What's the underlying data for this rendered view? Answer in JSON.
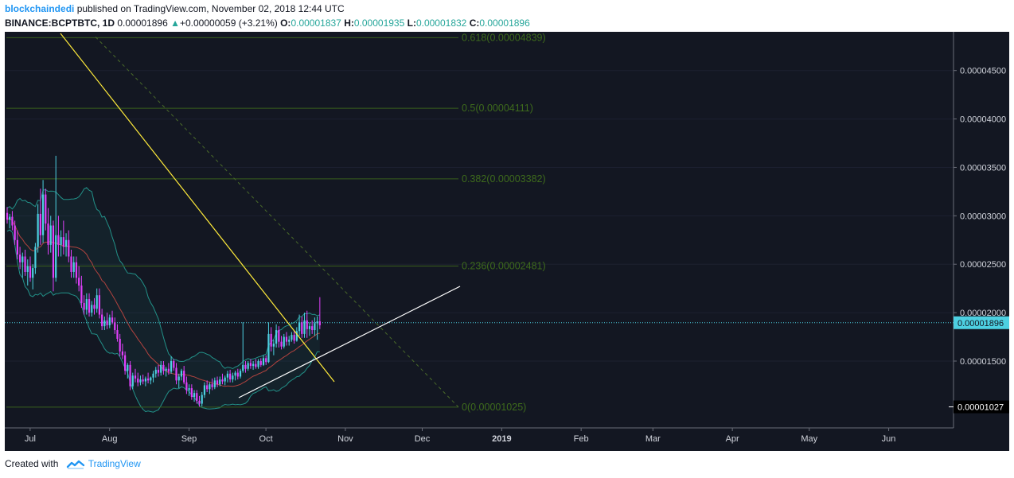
{
  "header": {
    "author": "blockchaindedi",
    "published_text": "published on TradingView.com, November 02, 2018 12:44 UTC",
    "symbol": "BINANCE:BCPTBTC, 1D",
    "last": "0.00001896",
    "change": "+0.00000059 (+3.21%)",
    "o_label": "O:",
    "o_val": "0.00001837",
    "h_label": "H:",
    "h_val": "0.00001935",
    "l_label": "L:",
    "l_val": "0.00001832",
    "c_label": "C:",
    "c_val": "0.00001896"
  },
  "footer": {
    "created_with": "Created with",
    "brand": "TradingView"
  },
  "colors": {
    "background": "#131722",
    "bull": "#4dd0e1",
    "bear": "#e040fb",
    "fib": "#3a5f1c",
    "fib_text": "#3e6b1c",
    "trend_yellow": "#ffeb3b",
    "trend_white": "#ffffff",
    "bollinger": "#26a69a",
    "ma": "#b2433f",
    "last_price": "#4dd0e1"
  },
  "chart_data": {
    "type": "candlestick",
    "interval": "1D",
    "x_tick_labels": [
      "Jul",
      "Aug",
      "Sep",
      "Oct",
      "Nov",
      "Dec",
      "2019",
      "Feb",
      "Mar",
      "Apr",
      "May",
      "Jun"
    ],
    "y_tick_labels": [
      "0.00004500",
      "0.00004000",
      "0.00003500",
      "0.00003000",
      "0.00002500",
      "0.00002000",
      "0.00001500"
    ],
    "y_ticks": [
      4.5e-05,
      4e-05,
      3.5e-05,
      3e-05,
      2.5e-05,
      2e-05,
      1.5e-05
    ],
    "ylim": [
      8.1e-06,
      4.9e-05
    ],
    "last_price": 1.896e-05,
    "last_price_label": "0.00001896",
    "low_marker": 1.027e-05,
    "low_marker_label": "0.00001027",
    "fib_levels": [
      {
        "level": 0.618,
        "value": 4.839e-05,
        "label": "0.618(0.00004839)"
      },
      {
        "level": 0.5,
        "value": 4.111e-05,
        "label": "0.5(0.00004111)"
      },
      {
        "level": 0.382,
        "value": 3.382e-05,
        "label": "0.382(0.00003382)"
      },
      {
        "level": 0.236,
        "value": 2.481e-05,
        "label": "0.236(0.00002481)"
      },
      {
        "level": 0,
        "value": 1.025e-05,
        "label": "0(0.00001025)"
      }
    ],
    "candles": [
      [
        "2018-06-18",
        3.03e-05,
        3.09e-05,
        2.92e-05,
        2.96e-05
      ],
      [
        "2018-06-19",
        2.96e-05,
        3.02e-05,
        2.87e-05,
        2.99e-05
      ],
      [
        "2018-06-20",
        2.99e-05,
        3.05e-05,
        2.85e-05,
        2.9e-05
      ],
      [
        "2018-06-21",
        2.9e-05,
        2.95e-05,
        2.7e-05,
        2.75e-05
      ],
      [
        "2018-06-22",
        2.75e-05,
        2.85e-05,
        2.55e-05,
        2.6e-05
      ],
      [
        "2018-06-23",
        2.6e-05,
        2.68e-05,
        2.45e-05,
        2.52e-05
      ],
      [
        "2018-06-24",
        2.52e-05,
        2.62e-05,
        2.36e-05,
        2.58e-05
      ],
      [
        "2018-06-25",
        2.58e-05,
        2.65e-05,
        2.38e-05,
        2.42e-05
      ],
      [
        "2018-06-26",
        2.42e-05,
        2.55e-05,
        2.28e-05,
        2.48e-05
      ],
      [
        "2018-06-27",
        2.48e-05,
        2.58e-05,
        2.32e-05,
        2.36e-05
      ],
      [
        "2018-06-28",
        2.36e-05,
        2.5e-05,
        2.24e-05,
        2.46e-05
      ],
      [
        "2018-06-29",
        2.46e-05,
        2.72e-05,
        2.4e-05,
        2.68e-05
      ],
      [
        "2018-06-30",
        2.68e-05,
        3.12e-05,
        2.62e-05,
        3.02e-05
      ],
      [
        "2018-07-01",
        3.02e-05,
        3.28e-05,
        2.7e-05,
        2.8e-05
      ],
      [
        "2018-07-02",
        2.8e-05,
        3.37e-05,
        2.72e-05,
        3.22e-05
      ],
      [
        "2018-07-03",
        3.22e-05,
        3.28e-05,
        2.85e-05,
        2.92e-05
      ],
      [
        "2018-07-04",
        2.92e-05,
        3.08e-05,
        2.6e-05,
        2.7e-05
      ],
      [
        "2018-07-05",
        2.7e-05,
        3e-05,
        2.62e-05,
        2.9e-05
      ],
      [
        "2018-07-06",
        2.9e-05,
        2.95e-05,
        2.22e-05,
        2.36e-05
      ],
      [
        "2018-07-07",
        2.36e-05,
        3.62e-05,
        2.32e-05,
        2.8e-05
      ],
      [
        "2018-07-08",
        2.8e-05,
        3e-05,
        2.58e-05,
        2.7e-05
      ],
      [
        "2018-07-09",
        2.7e-05,
        2.85e-05,
        2.58e-05,
        2.78e-05
      ],
      [
        "2018-07-10",
        2.78e-05,
        2.95e-05,
        2.6e-05,
        2.68e-05
      ],
      [
        "2018-07-11",
        2.68e-05,
        2.82e-05,
        2.58e-05,
        2.75e-05
      ],
      [
        "2018-07-12",
        2.75e-05,
        2.85e-05,
        2.52e-05,
        2.58e-05
      ],
      [
        "2018-07-13",
        2.58e-05,
        2.65e-05,
        2.36e-05,
        2.42e-05
      ],
      [
        "2018-07-14",
        2.42e-05,
        2.58e-05,
        2.36e-05,
        2.52e-05
      ],
      [
        "2018-07-15",
        2.52e-05,
        2.58e-05,
        2.3e-05,
        2.36e-05
      ],
      [
        "2018-07-16",
        2.36e-05,
        2.48e-05,
        2.22e-05,
        2.28e-05
      ],
      [
        "2018-07-17",
        2.28e-05,
        2.38e-05,
        2.05e-05,
        2.1e-05
      ],
      [
        "2018-07-18",
        2.1e-05,
        2.18e-05,
        1.98e-05,
        2.03e-05
      ],
      [
        "2018-07-19",
        2.03e-05,
        2.2e-05,
        1.98e-05,
        2.14e-05
      ],
      [
        "2018-07-20",
        2.14e-05,
        2.2e-05,
        1.96e-05,
        2e-05
      ],
      [
        "2018-07-21",
        2e-05,
        2.12e-05,
        1.96e-05,
        2.08e-05
      ],
      [
        "2018-07-22",
        2.08e-05,
        2.15e-05,
        1.98e-05,
        2.04e-05
      ],
      [
        "2018-07-23",
        2.04e-05,
        2.25e-05,
        2e-05,
        2.18e-05
      ],
      [
        "2018-07-24",
        2.18e-05,
        2.25e-05,
        1.94e-05,
        1.98e-05
      ],
      [
        "2018-07-25",
        1.98e-05,
        2.04e-05,
        1.82e-05,
        1.86e-05
      ],
      [
        "2018-07-26",
        1.86e-05,
        1.96e-05,
        1.82e-05,
        1.92e-05
      ],
      [
        "2018-07-27",
        1.92e-05,
        2e-05,
        1.83e-05,
        1.87e-05
      ],
      [
        "2018-07-28",
        1.87e-05,
        1.98e-05,
        1.84e-05,
        1.95e-05
      ],
      [
        "2018-07-29",
        1.95e-05,
        2.02e-05,
        1.88e-05,
        1.9e-05
      ],
      [
        "2018-07-30",
        1.9e-05,
        1.95e-05,
        1.78e-05,
        1.82e-05
      ],
      [
        "2018-07-31",
        1.82e-05,
        1.88e-05,
        1.7e-05,
        1.73e-05
      ],
      [
        "2018-08-01",
        1.73e-05,
        1.78e-05,
        1.55e-05,
        1.6e-05
      ],
      [
        "2018-08-02",
        1.6e-05,
        1.68e-05,
        1.52e-05,
        1.56e-05
      ],
      [
        "2018-08-03",
        1.56e-05,
        1.6e-05,
        1.36e-05,
        1.4e-05
      ],
      [
        "2018-08-04",
        1.4e-05,
        1.48e-05,
        1.32e-05,
        1.46e-05
      ],
      [
        "2018-08-05",
        1.46e-05,
        1.5e-05,
        1.2e-05,
        1.24e-05
      ],
      [
        "2018-08-06",
        1.24e-05,
        1.38e-05,
        1.21e-05,
        1.35e-05
      ],
      [
        "2018-08-07",
        1.35e-05,
        1.42e-05,
        1.28e-05,
        1.32e-05
      ],
      [
        "2018-08-08",
        1.32e-05,
        1.38e-05,
        1.24e-05,
        1.28e-05
      ],
      [
        "2018-08-09",
        1.28e-05,
        1.35e-05,
        1.25e-05,
        1.31e-05
      ],
      [
        "2018-08-10",
        1.31e-05,
        1.36e-05,
        1.26e-05,
        1.29e-05
      ],
      [
        "2018-08-11",
        1.29e-05,
        1.34e-05,
        1.24e-05,
        1.32e-05
      ],
      [
        "2018-08-12",
        1.32e-05,
        1.38e-05,
        1.27e-05,
        1.3e-05
      ],
      [
        "2018-08-13",
        1.3e-05,
        1.34e-05,
        1.26e-05,
        1.33e-05
      ],
      [
        "2018-08-14",
        1.33e-05,
        1.4e-05,
        1.28e-05,
        1.37e-05
      ],
      [
        "2018-08-15",
        1.37e-05,
        1.44e-05,
        1.33e-05,
        1.41e-05
      ],
      [
        "2018-08-16",
        1.41e-05,
        1.46e-05,
        1.34e-05,
        1.38e-05
      ],
      [
        "2018-08-17",
        1.38e-05,
        1.5e-05,
        1.35e-05,
        1.46e-05
      ],
      [
        "2018-08-18",
        1.46e-05,
        1.5e-05,
        1.36e-05,
        1.4e-05
      ],
      [
        "2018-08-19",
        1.4e-05,
        1.44e-05,
        1.34e-05,
        1.42e-05
      ],
      [
        "2018-08-20",
        1.42e-05,
        1.48e-05,
        1.36e-05,
        1.39e-05
      ],
      [
        "2018-08-21",
        1.39e-05,
        1.55e-05,
        1.37e-05,
        1.5e-05
      ],
      [
        "2018-08-22",
        1.5e-05,
        1.52e-05,
        1.4e-05,
        1.43e-05
      ],
      [
        "2018-08-23",
        1.43e-05,
        1.48e-05,
        1.26e-05,
        1.3e-05
      ],
      [
        "2018-08-24",
        1.3e-05,
        1.37e-05,
        1.22e-05,
        1.34e-05
      ],
      [
        "2018-08-25",
        1.34e-05,
        1.42e-05,
        1.3e-05,
        1.4e-05
      ],
      [
        "2018-08-26",
        1.4e-05,
        1.45e-05,
        1.26e-05,
        1.28e-05
      ],
      [
        "2018-08-27",
        1.28e-05,
        1.34e-05,
        1.16e-05,
        1.2e-05
      ],
      [
        "2018-08-28",
        1.2e-05,
        1.26e-05,
        1.14e-05,
        1.22e-05
      ],
      [
        "2018-08-29",
        1.22e-05,
        1.26e-05,
        1.1e-05,
        1.13e-05
      ],
      [
        "2018-08-30",
        1.13e-05,
        1.2e-05,
        1.08e-05,
        1.17e-05
      ],
      [
        "2018-08-31",
        1.17e-05,
        1.2e-05,
        1.06e-05,
        1.09e-05
      ],
      [
        "2018-09-01",
        1.09e-05,
        1.14e-05,
        1.03e-05,
        1.06e-05
      ],
      [
        "2018-09-02",
        1.06e-05,
        1.18e-05,
        1.03e-05,
        1.15e-05
      ],
      [
        "2018-09-03",
        1.15e-05,
        1.28e-05,
        1.12e-05,
        1.25e-05
      ],
      [
        "2018-09-04",
        1.25e-05,
        1.3e-05,
        1.18e-05,
        1.21e-05
      ],
      [
        "2018-09-05",
        1.21e-05,
        1.28e-05,
        1.16e-05,
        1.26e-05
      ],
      [
        "2018-09-06",
        1.26e-05,
        1.32e-05,
        1.2e-05,
        1.23e-05
      ],
      [
        "2018-09-07",
        1.23e-05,
        1.33e-05,
        1.21e-05,
        1.3e-05
      ],
      [
        "2018-09-08",
        1.3e-05,
        1.34e-05,
        1.23e-05,
        1.26e-05
      ],
      [
        "2018-09-09",
        1.26e-05,
        1.34e-05,
        1.24e-05,
        1.31e-05
      ],
      [
        "2018-09-10",
        1.31e-05,
        1.37e-05,
        1.26e-05,
        1.29e-05
      ],
      [
        "2018-09-11",
        1.29e-05,
        1.35e-05,
        1.25e-05,
        1.33e-05
      ],
      [
        "2018-09-12",
        1.33e-05,
        1.4e-05,
        1.28e-05,
        1.37e-05
      ],
      [
        "2018-09-13",
        1.37e-05,
        1.41e-05,
        1.28e-05,
        1.31e-05
      ],
      [
        "2018-09-14",
        1.31e-05,
        1.38e-05,
        1.28e-05,
        1.35e-05
      ],
      [
        "2018-09-15",
        1.35e-05,
        1.4e-05,
        1.3e-05,
        1.38e-05
      ],
      [
        "2018-09-16",
        1.38e-05,
        1.42e-05,
        1.31e-05,
        1.34e-05
      ],
      [
        "2018-09-17",
        1.34e-05,
        1.42e-05,
        1.32e-05,
        1.4e-05
      ],
      [
        "2018-09-18",
        1.4e-05,
        1.9e-05,
        1.38e-05,
        1.46e-05
      ],
      [
        "2018-09-19",
        1.46e-05,
        1.5e-05,
        1.38e-05,
        1.42e-05
      ],
      [
        "2018-09-20",
        1.42e-05,
        1.5e-05,
        1.4e-05,
        1.48e-05
      ],
      [
        "2018-09-21",
        1.48e-05,
        1.52e-05,
        1.42e-05,
        1.45e-05
      ],
      [
        "2018-09-22",
        1.45e-05,
        1.5e-05,
        1.41e-05,
        1.47e-05
      ],
      [
        "2018-09-23",
        1.47e-05,
        1.52e-05,
        1.42e-05,
        1.44e-05
      ],
      [
        "2018-09-24",
        1.44e-05,
        1.52e-05,
        1.42e-05,
        1.5e-05
      ],
      [
        "2018-09-25",
        1.5e-05,
        1.53e-05,
        1.44e-05,
        1.46e-05
      ],
      [
        "2018-09-26",
        1.46e-05,
        1.56e-05,
        1.45e-05,
        1.53e-05
      ],
      [
        "2018-09-27",
        1.53e-05,
        1.56e-05,
        1.46e-05,
        1.49e-05
      ],
      [
        "2018-09-28",
        1.49e-05,
        1.9e-05,
        1.48e-05,
        1.78e-05
      ],
      [
        "2018-09-29",
        1.78e-05,
        1.85e-05,
        1.6e-05,
        1.65e-05
      ],
      [
        "2018-09-30",
        1.65e-05,
        1.72e-05,
        1.56e-05,
        1.68e-05
      ],
      [
        "2018-10-01",
        1.68e-05,
        1.88e-05,
        1.64e-05,
        1.82e-05
      ],
      [
        "2018-10-02",
        1.82e-05,
        1.86e-05,
        1.64e-05,
        1.7e-05
      ],
      [
        "2018-10-03",
        1.7e-05,
        1.76e-05,
        1.62e-05,
        1.65e-05
      ],
      [
        "2018-10-04",
        1.65e-05,
        1.78e-05,
        1.63e-05,
        1.75e-05
      ],
      [
        "2018-10-05",
        1.75e-05,
        1.8e-05,
        1.66e-05,
        1.7e-05
      ],
      [
        "2018-10-06",
        1.7e-05,
        1.76e-05,
        1.66e-05,
        1.72e-05
      ],
      [
        "2018-10-07",
        1.72e-05,
        1.8e-05,
        1.7e-05,
        1.77e-05
      ],
      [
        "2018-10-08",
        1.77e-05,
        1.81e-05,
        1.68e-05,
        1.71e-05
      ],
      [
        "2018-10-09",
        1.71e-05,
        1.85e-05,
        1.7e-05,
        1.81e-05
      ],
      [
        "2018-10-10",
        1.81e-05,
        1.98e-05,
        1.76e-05,
        1.9e-05
      ],
      [
        "2018-10-11",
        1.9e-05,
        1.96e-05,
        1.74e-05,
        1.78e-05
      ],
      [
        "2018-10-12",
        1.78e-05,
        2e-05,
        1.74e-05,
        1.92e-05
      ],
      [
        "2018-10-13",
        1.92e-05,
        2.02e-05,
        1.74e-05,
        1.83e-05
      ],
      [
        "2018-10-14",
        1.83e-05,
        1.9e-05,
        1.76e-05,
        1.86e-05
      ],
      [
        "2018-10-15",
        1.86e-05,
        1.92e-05,
        1.78e-05,
        1.82e-05
      ],
      [
        "2018-10-16",
        1.82e-05,
        1.95e-05,
        1.76e-05,
        1.89e-05
      ],
      [
        "2018-10-17",
        1.89e-05,
        1.96e-05,
        1.72e-05,
        1.91e-05
      ],
      [
        "2018-10-18",
        1.91e-05,
        2.16e-05,
        1.83e-05,
        1.87e-05
      ]
    ]
  }
}
